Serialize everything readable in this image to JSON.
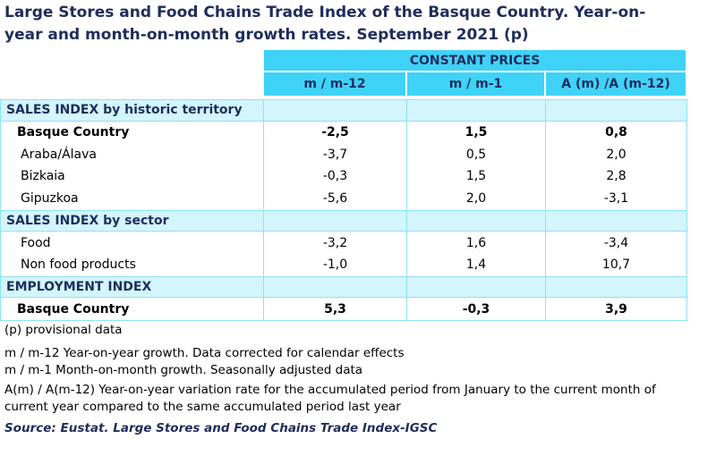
{
  "title": "Large Stores and Food Chains Trade Index of the Basque Country. Year-on-year and month-on-month growth rates. September 2021 (p)",
  "table": {
    "group_header": "CONSTANT PRICES",
    "columns": [
      "m / m-12",
      "m / m-1",
      "A (m) /A (m-12)"
    ],
    "sections": [
      {
        "title": "SALES INDEX by historic territory",
        "rows": [
          {
            "label": "Basque Country",
            "values": [
              "-2,5",
              "1,5",
              "0,8"
            ],
            "bold": true
          },
          {
            "label": "Araba/Álava",
            "values": [
              "-3,7",
              "0,5",
              "2,0"
            ]
          },
          {
            "label": "Bizkaia",
            "values": [
              "-0,3",
              "1,5",
              "2,8"
            ]
          },
          {
            "label": "Gipuzkoa",
            "values": [
              "-5,6",
              "2,0",
              "-3,1"
            ]
          }
        ]
      },
      {
        "title": "SALES INDEX by sector",
        "rows": [
          {
            "label": "Food",
            "values": [
              "-3,2",
              "1,6",
              "-3,4"
            ]
          },
          {
            "label": "Non food products",
            "values": [
              "-1,0",
              "1,4",
              "10,7"
            ]
          }
        ]
      },
      {
        "title": "EMPLOYMENT INDEX",
        "rows": [
          {
            "label": "Basque Country",
            "values": [
              "5,3",
              "-0,3",
              "3,9"
            ],
            "bold": true
          }
        ]
      }
    ]
  },
  "notes": [
    "(p) provisional data",
    "m / m-12 Year-on-year growth. Data corrected for calendar effects",
    "m / m-1 Month-on-month growth. Seasonally adjusted data",
    "A(m) / A(m-12) Year-on-year variation rate for the accumulated period from January to the current month of current year compared to the same accumulated period last year"
  ],
  "source": "Source: Eustat. Large Stores and Food Chains Trade Index-IGSC"
}
